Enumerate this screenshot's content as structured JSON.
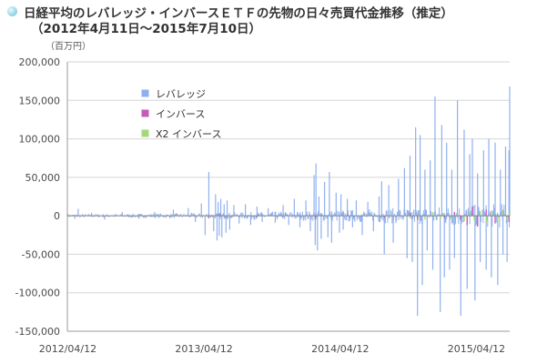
{
  "header": {
    "title_line1": "日経平均のレバレッジ・インバースＥＴＦの先物の日々売買代金推移（推定）",
    "title_line2": "（2012年4月11日〜2015年7月10日）",
    "unit": "（百万円）"
  },
  "chart_data": {
    "type": "bar",
    "title": "日経平均のレバレッジ・インバースＥＴＦの先物の日々売買代金推移（推定）",
    "subtitle": "（2012年4月11日〜2015年7月10日）",
    "ylabel": "（百万円）",
    "ylim": [
      -150000,
      200000
    ],
    "yticks": [
      200000,
      150000,
      100000,
      50000,
      0,
      -50000,
      -100000,
      -150000
    ],
    "ytick_labels": [
      "200,000",
      "150,000",
      "100,000",
      "50,000",
      "0",
      "-50,000",
      "-100,000",
      "-150,000"
    ],
    "x_range": [
      "2012-04-11",
      "2015-07-10"
    ],
    "xticks": [
      "2012-04-12",
      "2013-04-12",
      "2014-04-12",
      "2015-04-12"
    ],
    "xtick_labels": [
      "2012/04/12",
      "2013/04/12",
      "2014/04/12",
      "2015/04/12"
    ],
    "grid": true,
    "legend_position": "top-left",
    "series": [
      {
        "name": "レバレッジ",
        "color": "#8fb0ee",
        "x": [
          "2012-04-11",
          "2012-05-01",
          "2012-05-10",
          "2012-06-15",
          "2012-07-20",
          "2012-09-05",
          "2012-10-20",
          "2012-12-01",
          "2013-01-20",
          "2013-03-01",
          "2013-03-20",
          "2013-04-05",
          "2013-04-15",
          "2013-04-25",
          "2013-05-08",
          "2013-05-13",
          "2013-05-17",
          "2013-05-20",
          "2013-05-23",
          "2013-05-27",
          "2013-05-30",
          "2013-06-05",
          "2013-06-10",
          "2013-06-13",
          "2013-06-20",
          "2013-07-01",
          "2013-07-15",
          "2013-08-01",
          "2013-08-15",
          "2013-09-01",
          "2013-09-15",
          "2013-10-01",
          "2013-10-20",
          "2013-11-10",
          "2013-11-25",
          "2013-12-10",
          "2013-12-25",
          "2014-01-10",
          "2014-01-22",
          "2014-02-01",
          "2014-02-04",
          "2014-02-06",
          "2014-02-10",
          "2014-02-14",
          "2014-02-20",
          "2014-03-01",
          "2014-03-10",
          "2014-03-14",
          "2014-03-20",
          "2014-04-01",
          "2014-04-10",
          "2014-04-14",
          "2014-04-20",
          "2014-05-01",
          "2014-05-15",
          "2014-05-25",
          "2014-06-10",
          "2014-06-25",
          "2014-07-10",
          "2014-07-25",
          "2014-08-01",
          "2014-08-08",
          "2014-08-20",
          "2014-09-01",
          "2014-09-15",
          "2014-10-01",
          "2014-10-08",
          "2014-10-16",
          "2014-10-22",
          "2014-10-31",
          "2014-11-05",
          "2014-11-12",
          "2014-11-18",
          "2014-11-25",
          "2014-12-01",
          "2014-12-09",
          "2014-12-16",
          "2014-12-22",
          "2015-01-05",
          "2015-01-09",
          "2015-01-16",
          "2015-01-22",
          "2015-01-30",
          "2015-02-05",
          "2015-02-12",
          "2015-02-20",
          "2015-03-01",
          "2015-03-10",
          "2015-03-18",
          "2015-03-25",
          "2015-04-01",
          "2015-04-08",
          "2015-04-15",
          "2015-04-22",
          "2015-05-01",
          "2015-05-08",
          "2015-05-15",
          "2015-05-22",
          "2015-06-01",
          "2015-06-08",
          "2015-06-15",
          "2015-06-22",
          "2015-06-29",
          "2015-07-03",
          "2015-07-08",
          "2015-07-10"
        ],
        "values": [
          3000,
          -4000,
          9000,
          4000,
          -5000,
          5000,
          -4000,
          5000,
          8000,
          10000,
          -8000,
          16000,
          -25000,
          57000,
          -20000,
          28000,
          -32000,
          18000,
          -26000,
          22000,
          -28000,
          15000,
          -22000,
          20000,
          -18000,
          14000,
          -10000,
          15000,
          -12000,
          12000,
          -8000,
          10000,
          -9000,
          14000,
          -12000,
          22000,
          -15000,
          20000,
          -20000,
          53000,
          -38000,
          68000,
          -45000,
          25000,
          -30000,
          44000,
          -28000,
          57000,
          -35000,
          30000,
          -22000,
          28000,
          -18000,
          22000,
          -15000,
          20000,
          -25000,
          18000,
          -20000,
          25000,
          45000,
          -50000,
          40000,
          -35000,
          48000,
          62000,
          -55000,
          78000,
          -60000,
          115000,
          -130000,
          105000,
          -90000,
          60000,
          -45000,
          72000,
          -70000,
          155000,
          -125000,
          118000,
          -80000,
          95000,
          -70000,
          60000,
          -55000,
          150000,
          -130000,
          112000,
          -95000,
          80000,
          100000,
          -110000,
          55000,
          -60000,
          85000,
          -70000,
          100000,
          -80000,
          95000,
          -90000,
          60000,
          -50000,
          90000,
          -60000,
          85000,
          168000
        ]
      },
      {
        "name": "インバース",
        "color": "#c75ab8",
        "x": [
          "2012-05-01",
          "2012-10-01",
          "2013-04-25",
          "2013-05-23",
          "2013-09-01",
          "2014-02-04",
          "2014-05-01",
          "2014-08-08",
          "2014-10-16",
          "2014-11-05",
          "2014-12-16",
          "2015-01-16",
          "2015-02-12",
          "2015-03-01",
          "2015-03-18",
          "2015-04-01",
          "2015-04-15",
          "2015-05-08",
          "2015-06-01",
          "2015-06-22",
          "2015-07-08"
        ],
        "values": [
          1000,
          -800,
          -3000,
          2500,
          -1500,
          -4000,
          2000,
          -2500,
          3500,
          -5000,
          4000,
          -3000,
          5000,
          -4000,
          -12000,
          12000,
          -14000,
          8000,
          -10000,
          6000,
          -8000
        ]
      },
      {
        "name": "X2 インバース",
        "color": "#a6d77a",
        "x": [
          "2014-10-16",
          "2014-11-05",
          "2014-11-25",
          "2014-12-16",
          "2015-01-05",
          "2015-01-16",
          "2015-02-05",
          "2015-02-20",
          "2015-03-10",
          "2015-03-25",
          "2015-04-08",
          "2015-04-22",
          "2015-05-08",
          "2015-05-22",
          "2015-06-08",
          "2015-06-22",
          "2015-07-03",
          "2015-07-10"
        ],
        "values": [
          -3000,
          4000,
          -5000,
          5000,
          -6000,
          4000,
          -5000,
          3000,
          -7000,
          5000,
          -8000,
          6000,
          -9000,
          7000,
          -10000,
          8000,
          -6000,
          5000
        ]
      }
    ]
  }
}
